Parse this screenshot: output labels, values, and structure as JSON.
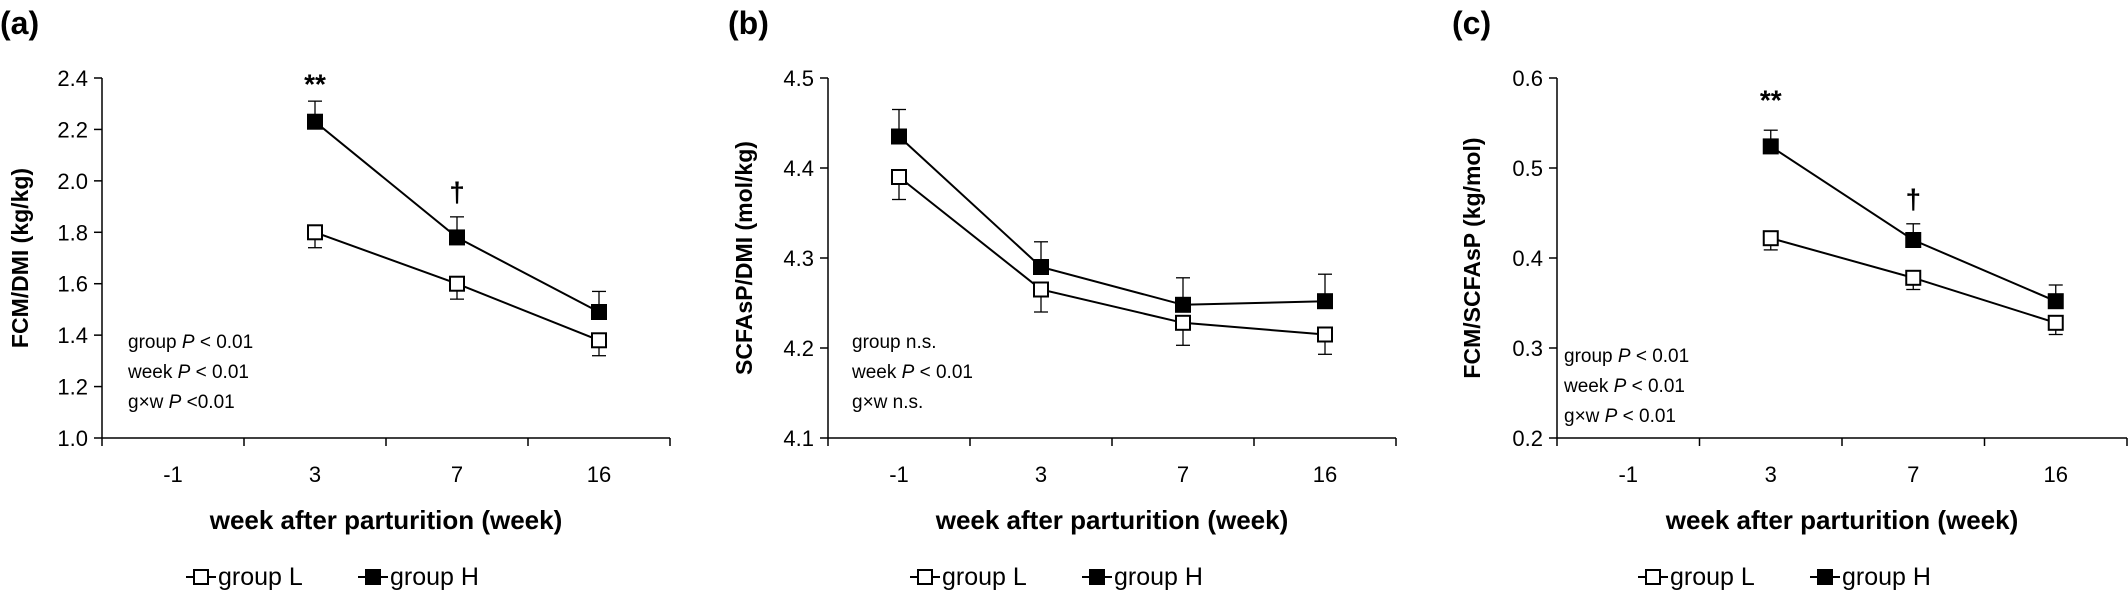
{
  "chart_data": [
    {
      "type": "line",
      "panel": "(a)",
      "ylabel": "FCM/DMI (kg/kg)",
      "xlabel": "week after parturition (week)",
      "categories": [
        "-1",
        "3",
        "7",
        "16"
      ],
      "ylim": [
        1.0,
        2.4
      ],
      "yticks": [
        "1.0",
        "1.2",
        "1.4",
        "1.6",
        "1.8",
        "2.0",
        "2.2",
        "2.4"
      ],
      "series": [
        {
          "name": "group L",
          "marker": "open-square",
          "values": [
            null,
            1.8,
            1.6,
            1.38
          ],
          "errors": [
            null,
            0.06,
            0.06,
            0.06
          ]
        },
        {
          "name": "group H",
          "marker": "filled-square",
          "values": [
            null,
            2.23,
            1.78,
            1.49
          ],
          "errors": [
            null,
            0.08,
            0.08,
            0.08
          ]
        }
      ],
      "annotations": [
        {
          "category": "3",
          "text": "**",
          "y": 2.34
        },
        {
          "category": "7",
          "text": "†",
          "y": 1.92
        }
      ],
      "stats": [
        {
          "label": "group ",
          "p": "P",
          "rest": " < 0.01"
        },
        {
          "label": "week ",
          "p": "P",
          "rest": " < 0.01"
        },
        {
          "label": "g×w  ",
          "p": "P",
          "rest": " <0.01"
        }
      ]
    },
    {
      "type": "line",
      "panel": "(b)",
      "ylabel": "SCFAsP/DMI (mol/kg)",
      "xlabel": "week after parturition (week)",
      "categories": [
        "-1",
        "3",
        "7",
        "16"
      ],
      "ylim": [
        4.1,
        4.5
      ],
      "yticks": [
        "4.1",
        "4.2",
        "4.3",
        "4.4",
        "4.5"
      ],
      "series": [
        {
          "name": "group L",
          "marker": "open-square",
          "values": [
            4.39,
            4.265,
            4.228,
            4.215
          ],
          "errors": [
            0.025,
            0.025,
            0.025,
            0.022
          ]
        },
        {
          "name": "group H",
          "marker": "filled-square",
          "values": [
            4.435,
            4.29,
            4.248,
            4.252
          ],
          "errors": [
            0.03,
            0.028,
            0.03,
            0.03
          ]
        }
      ],
      "annotations": [],
      "stats": [
        {
          "label": "group n.s.",
          "p": "",
          "rest": ""
        },
        {
          "label": "week ",
          "p": "P",
          "rest": " < 0.01"
        },
        {
          "label": "g×w  n.s.",
          "p": "",
          "rest": ""
        }
      ]
    },
    {
      "type": "line",
      "panel": "(c)",
      "ylabel": "FCM/SCFAsP (kg/mol)",
      "xlabel": "week after parturition (week)",
      "categories": [
        "-1",
        "3",
        "7",
        "16"
      ],
      "ylim": [
        0.2,
        0.6
      ],
      "yticks": [
        "0.2",
        "0.3",
        "0.4",
        "0.5",
        "0.6"
      ],
      "series": [
        {
          "name": "group L",
          "marker": "open-square",
          "values": [
            null,
            0.422,
            0.378,
            0.328
          ],
          "errors": [
            null,
            0.013,
            0.013,
            0.013
          ]
        },
        {
          "name": "group H",
          "marker": "filled-square",
          "values": [
            null,
            0.524,
            0.42,
            0.352
          ],
          "errors": [
            null,
            0.018,
            0.018,
            0.018
          ]
        }
      ],
      "annotations": [
        {
          "category": "3",
          "text": "**",
          "y": 0.565
        },
        {
          "category": "7",
          "text": "†",
          "y": 0.455
        }
      ],
      "stats": [
        {
          "label": "group ",
          "p": "P",
          "rest": " < 0.01"
        },
        {
          "label": "week ",
          "p": "P",
          "rest": " < 0.01"
        },
        {
          "label": "g×w  ",
          "p": "P",
          "rest": " < 0.01"
        }
      ]
    }
  ]
}
